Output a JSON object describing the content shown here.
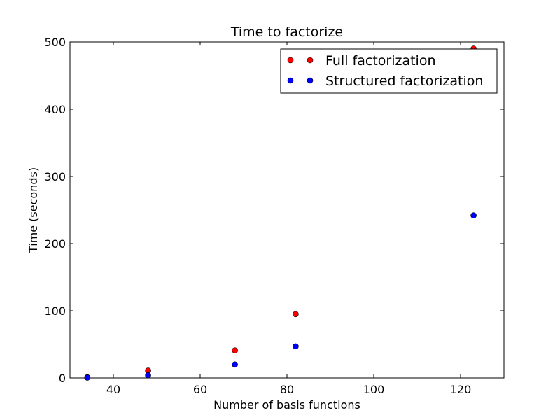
{
  "chart_data": {
    "type": "scatter",
    "title": "Time to factorize",
    "xlabel": "Number of basis functions",
    "ylabel": "Time (seconds)",
    "xlim": [
      30,
      130
    ],
    "ylim": [
      0,
      500
    ],
    "xticks": [
      40,
      60,
      80,
      100,
      120
    ],
    "yticks": [
      0,
      100,
      200,
      300,
      400,
      500
    ],
    "grid": false,
    "legend_position": "top-right",
    "series": [
      {
        "name": "Full factorization",
        "color": "#ff0000",
        "x": [
          34,
          48,
          68,
          82,
          123
        ],
        "y": [
          1,
          11,
          41,
          95,
          490
        ]
      },
      {
        "name": "Structured factorization",
        "color": "#0000ff",
        "x": [
          34,
          48,
          68,
          82,
          123
        ],
        "y": [
          0.5,
          4,
          20,
          47,
          242
        ]
      }
    ]
  }
}
